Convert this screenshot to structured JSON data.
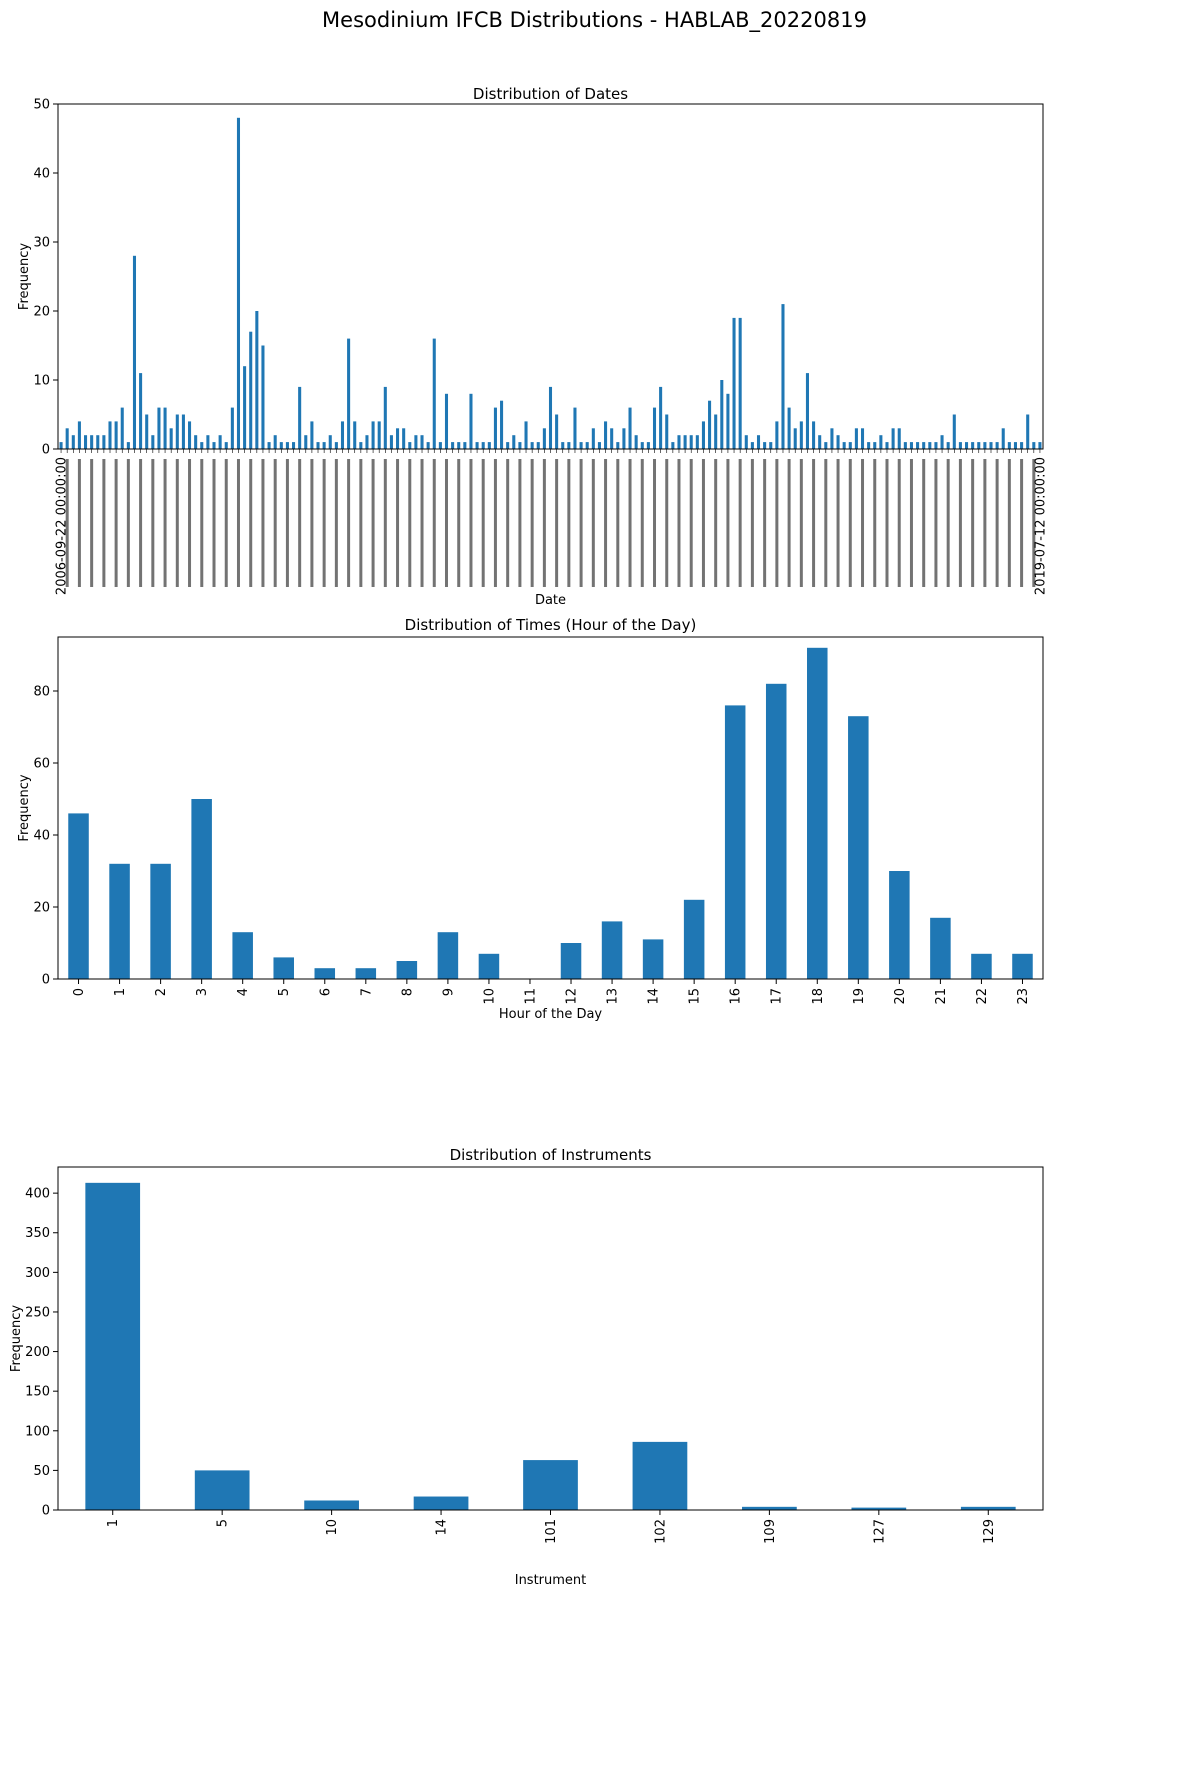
{
  "figure": {
    "suptitle": "Mesodinium IFCB Distributions - HABLAB_20220819"
  },
  "colors": {
    "bar": "#1f77b4",
    "axis": "#000000",
    "background": "#ffffff"
  },
  "chart_data": [
    {
      "type": "bar",
      "title": "Distribution of Dates",
      "xlabel": "Date",
      "ylabel": "Frequency",
      "ylim": [
        0,
        50
      ],
      "yticks": [
        0,
        10,
        20,
        30,
        40,
        50
      ],
      "grid": false,
      "legend": "none",
      "tick_labels_visible_note": "x tick labels are dense rotated dates from 2006-09 to 2019-07; only a sample is legible",
      "tick_labels_legible": [
        "2006-09-22 00:00:00",
        "2019-07-12 00:00:00"
      ],
      "values": [
        1,
        3,
        2,
        4,
        2,
        2,
        2,
        2,
        4,
        4,
        6,
        1,
        28,
        11,
        5,
        2,
        6,
        6,
        3,
        5,
        5,
        4,
        2,
        1,
        2,
        1,
        2,
        1,
        6,
        48,
        12,
        17,
        20,
        15,
        1,
        2,
        1,
        1,
        1,
        9,
        2,
        4,
        1,
        1,
        2,
        1,
        4,
        16,
        4,
        1,
        2,
        4,
        4,
        9,
        2,
        3,
        3,
        1,
        2,
        2,
        1,
        16,
        1,
        8,
        1,
        1,
        1,
        8,
        1,
        1,
        1,
        6,
        7,
        1,
        2,
        1,
        4,
        1,
        1,
        3,
        9,
        5,
        1,
        1,
        6,
        1,
        1,
        3,
        1,
        4,
        3,
        1,
        3,
        6,
        2,
        1,
        1,
        6,
        9,
        5,
        1,
        2,
        2,
        2,
        2,
        4,
        7,
        5,
        10,
        8,
        19,
        19,
        2,
        1,
        2,
        1,
        1,
        4,
        21,
        6,
        3,
        4,
        11,
        4,
        2,
        1,
        3,
        2,
        1,
        1,
        3,
        3,
        1,
        1,
        2,
        1,
        3,
        3,
        1,
        1,
        1,
        1,
        1,
        1,
        2,
        1,
        5,
        1,
        1,
        1,
        1,
        1,
        1,
        1,
        3,
        1,
        1,
        1,
        5,
        1,
        1
      ]
    },
    {
      "type": "bar",
      "title": "Distribution of Times (Hour of the Day)",
      "xlabel": "Hour of the Day",
      "ylabel": "Frequency",
      "ylim": [
        0,
        95
      ],
      "yticks": [
        0,
        20,
        40,
        60,
        80
      ],
      "grid": false,
      "legend": "none",
      "categories": [
        "0",
        "1",
        "2",
        "3",
        "4",
        "5",
        "6",
        "7",
        "8",
        "9",
        "10",
        "11",
        "12",
        "13",
        "14",
        "15",
        "16",
        "17",
        "18",
        "19",
        "20",
        "21",
        "22",
        "23"
      ],
      "values": [
        46,
        32,
        32,
        50,
        13,
        6,
        3,
        3,
        5,
        13,
        7,
        0,
        10,
        16,
        11,
        22,
        76,
        82,
        92,
        73,
        30,
        17,
        7,
        7
      ]
    },
    {
      "type": "bar",
      "title": "Distribution of Instruments",
      "xlabel": "Instrument",
      "ylabel": "Frequency",
      "ylim": [
        0,
        433
      ],
      "yticks": [
        0,
        50,
        100,
        150,
        200,
        250,
        300,
        350,
        400
      ],
      "grid": false,
      "legend": "none",
      "categories": [
        "1",
        "5",
        "10",
        "14",
        "101",
        "102",
        "109",
        "127",
        "129"
      ],
      "values": [
        413,
        50,
        12,
        17,
        63,
        86,
        4,
        3,
        4
      ]
    }
  ]
}
